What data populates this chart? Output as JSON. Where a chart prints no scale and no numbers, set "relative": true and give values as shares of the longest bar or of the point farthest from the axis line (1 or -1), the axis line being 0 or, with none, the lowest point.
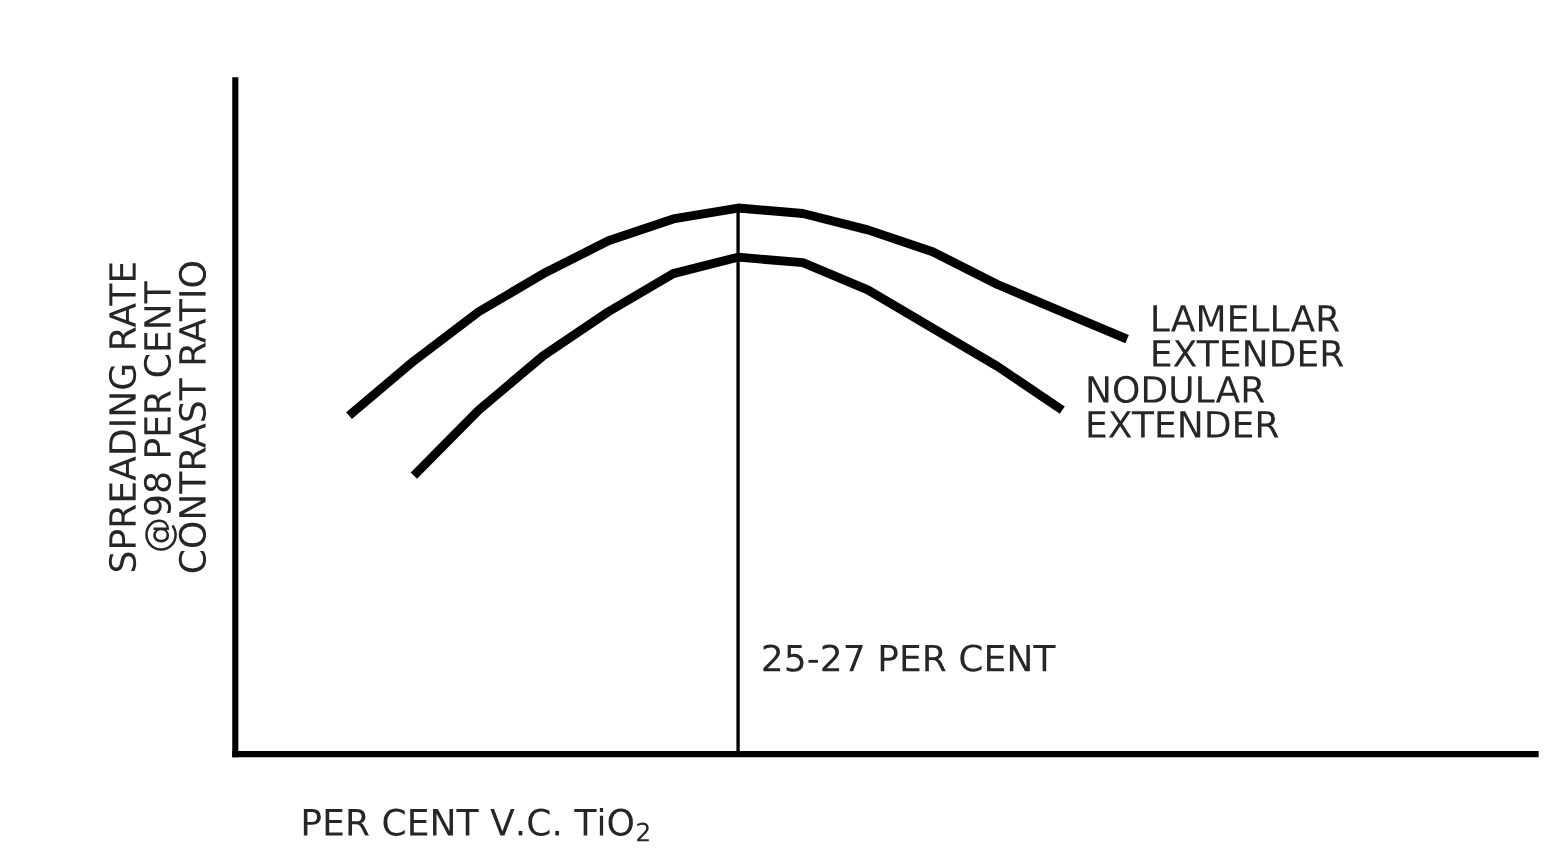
{
  "chart_data": {
    "type": "line",
    "relative": true,
    "xlabel": "PER CENT V.C. TiO$_{2}$",
    "ylabel": "SPREADING RATE\n@98 PER CENT\nCONTRAST RATIO",
    "categories": [
      null,
      null,
      null,
      null,
      null,
      null,
      null,
      null,
      null,
      null,
      null,
      null,
      null
    ],
    "series": [
      {
        "name": "LAMELLAR EXTENDER",
        "color": "#000000",
        "values": [
          0.62,
          0.72,
          0.81,
          0.88,
          0.94,
          0.98,
          1,
          0.99,
          0.96,
          0.92,
          0.86,
          0.81,
          0.76
        ]
      },
      {
        "name": "NODULAR EXTENDER",
        "color": "#000000",
        "values": [
          null,
          0.51,
          0.63,
          0.73,
          0.81,
          0.88,
          0.91,
          0.9,
          0.85,
          0.78,
          0.71,
          0.63,
          null
        ]
      }
    ],
    "annotations": [
      "25-27 PER CENT"
    ],
    "legend": false,
    "marker": "none",
    "line_style": "solid"
  }
}
